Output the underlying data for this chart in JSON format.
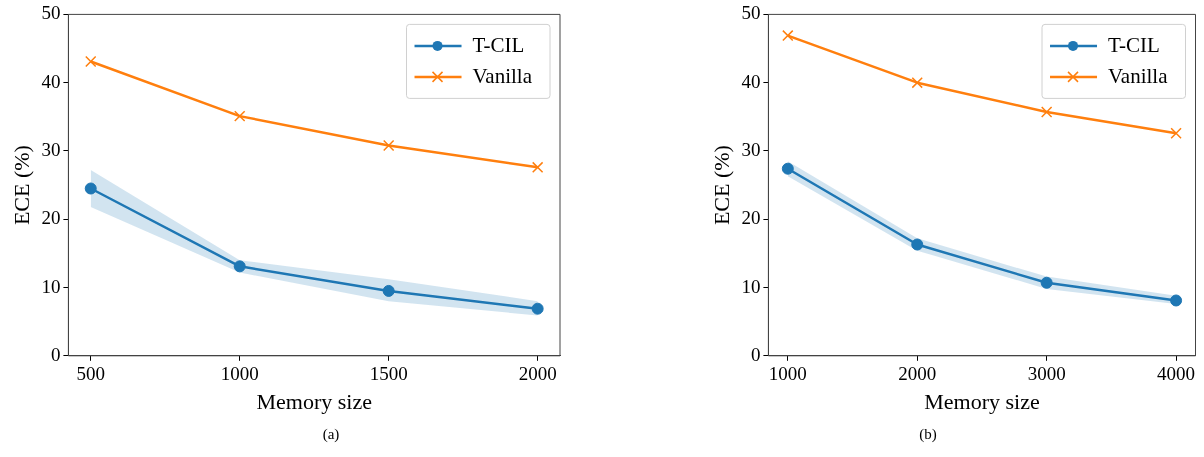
{
  "chart_data": [
    {
      "type": "line",
      "xlabel": "Memory size",
      "ylabel": "ECE (%)",
      "x": [
        500,
        1000,
        1500,
        2000
      ],
      "xlim": [
        425,
        2075
      ],
      "xticks": [
        500,
        1000,
        1500,
        2000
      ],
      "ylim": [
        0,
        50
      ],
      "yticks": [
        0,
        10,
        20,
        30,
        40,
        50
      ],
      "grid": false,
      "legend": "top right",
      "annotations": [
        "(a)"
      ],
      "series": [
        {
          "name": "T-CIL",
          "color": "#1f77b4",
          "marker": "circle",
          "values": [
            24.5,
            13.1,
            9.5,
            6.9
          ],
          "lower": [
            21.8,
            12.2,
            8.0,
            5.9
          ],
          "upper": [
            27.2,
            14.0,
            11.2,
            8.0
          ]
        },
        {
          "name": "Vanilla",
          "color": "#ff7f0e",
          "marker": "cross",
          "values": [
            43.1,
            35.1,
            30.8,
            27.6
          ]
        }
      ]
    },
    {
      "type": "line",
      "xlabel": "Memory size",
      "ylabel": "ECE (%)",
      "x": [
        1000,
        2000,
        3000,
        4000
      ],
      "xlim": [
        850,
        4150
      ],
      "xticks": [
        1000,
        2000,
        3000,
        4000
      ],
      "ylim": [
        0,
        50
      ],
      "yticks": [
        0,
        10,
        20,
        30,
        40,
        50
      ],
      "grid": false,
      "legend": "top right",
      "annotations": [
        "(b)"
      ],
      "series": [
        {
          "name": "T-CIL",
          "color": "#1f77b4",
          "marker": "circle",
          "values": [
            27.4,
            16.3,
            10.7,
            8.1
          ],
          "lower": [
            26.3,
            15.4,
            9.8,
            7.6
          ],
          "upper": [
            28.5,
            17.2,
            11.6,
            8.8
          ]
        },
        {
          "name": "Vanilla",
          "color": "#ff7f0e",
          "marker": "cross",
          "values": [
            46.9,
            40.0,
            35.7,
            32.6
          ]
        }
      ]
    }
  ]
}
